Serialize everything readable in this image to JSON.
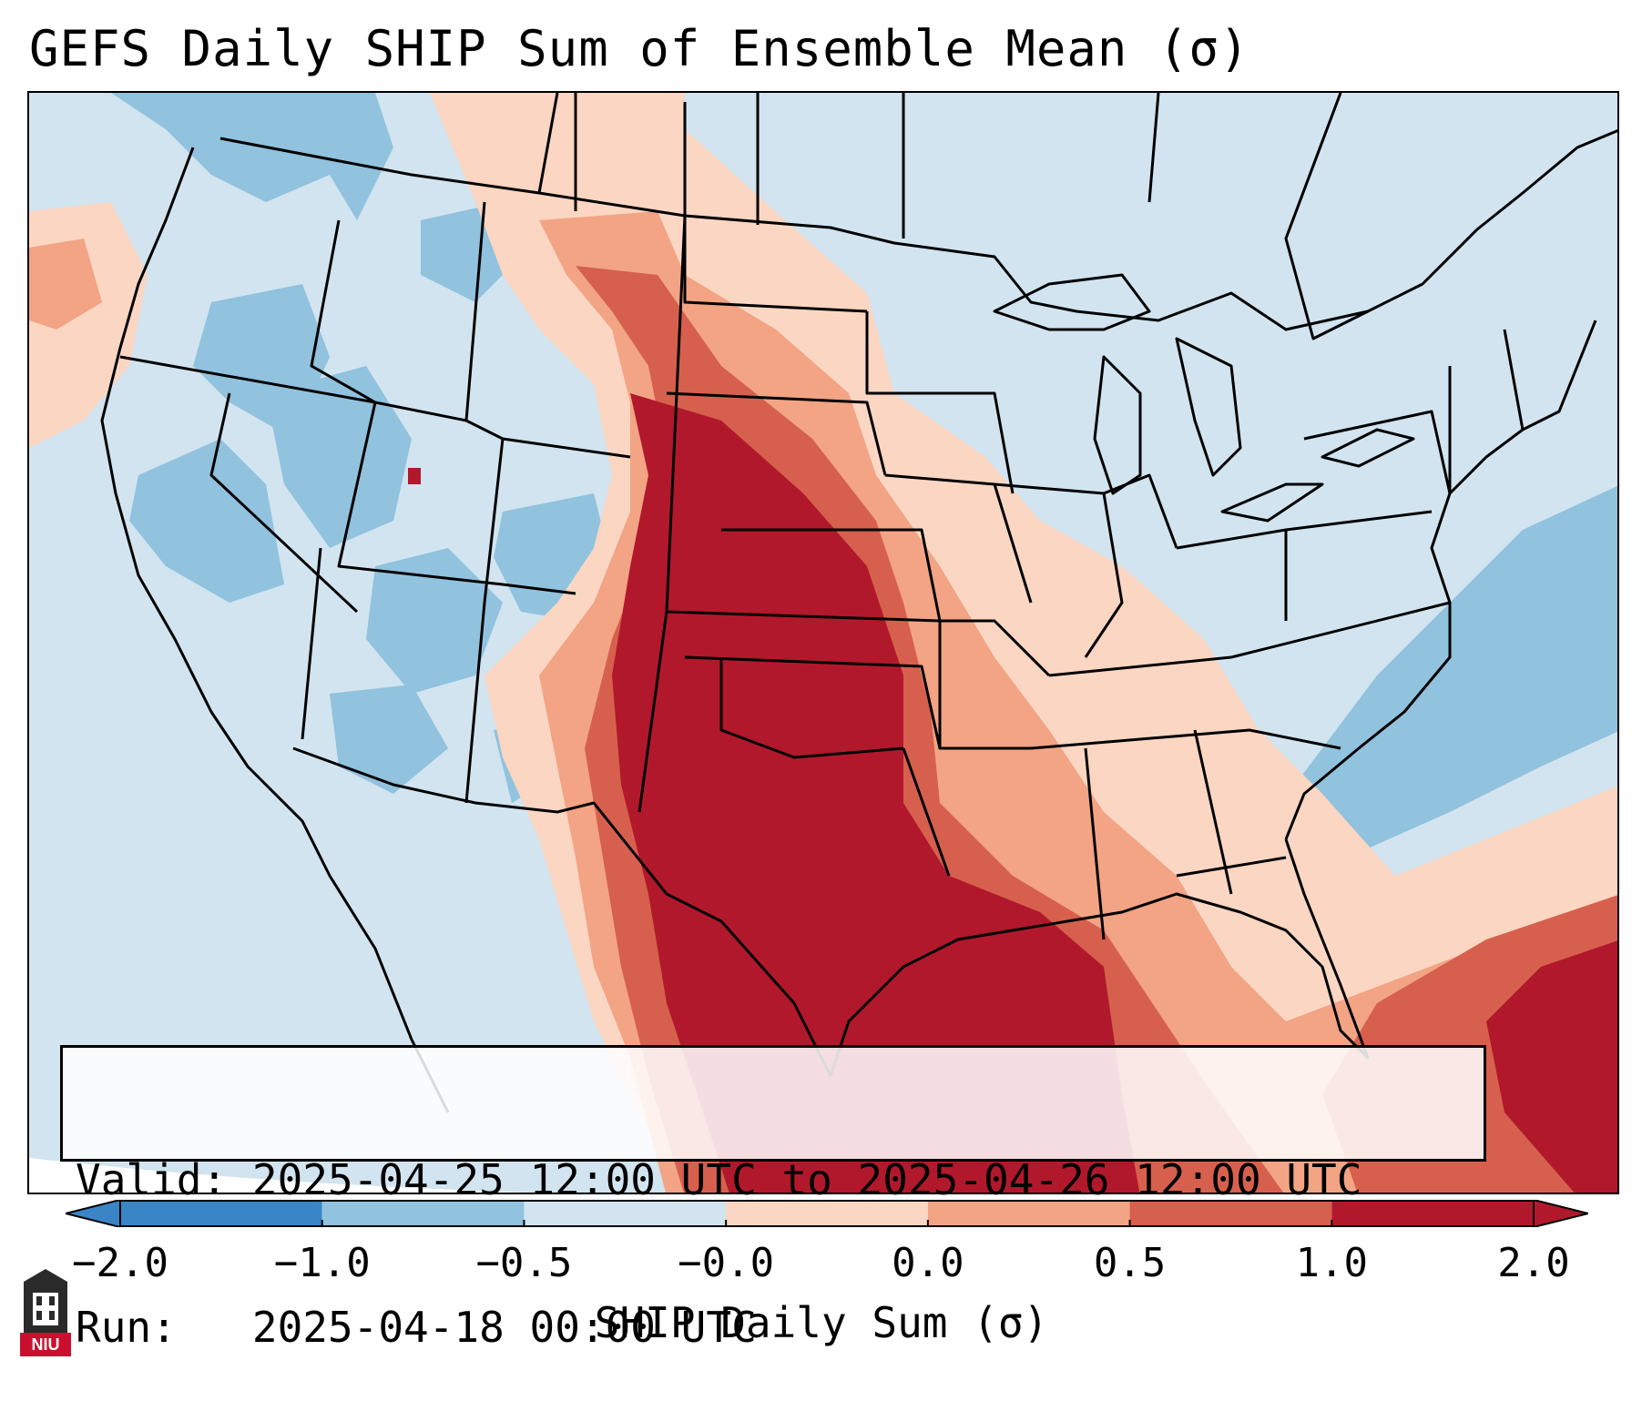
{
  "title": "GEFS Daily SHIP Sum of Ensemble Mean (σ)",
  "info": {
    "valid_label": "Valid:",
    "valid_value": "2025-04-25 12:00 UTC to 2025-04-26 12:00 UTC",
    "run_label": "Run:  ",
    "run_value": "2025-04-18 00:00 UTC"
  },
  "colorbar": {
    "label": "SHIP Daily Sum (σ)",
    "ticks": [
      "−2.0",
      "−1.0",
      "−0.5",
      "−0.0",
      "0.0",
      "0.5",
      "1.0",
      "2.0"
    ],
    "colors": [
      "#3a85c6",
      "#91c2de",
      "#d1e4ef",
      "#f7f7f7",
      "#fbd6c2",
      "#f2a484",
      "#d6604d",
      "#b2182b"
    ],
    "extend": "both"
  },
  "map": {
    "region": "CONUS",
    "background_color": "#d1e4ef",
    "logo_text": "NIU"
  }
}
